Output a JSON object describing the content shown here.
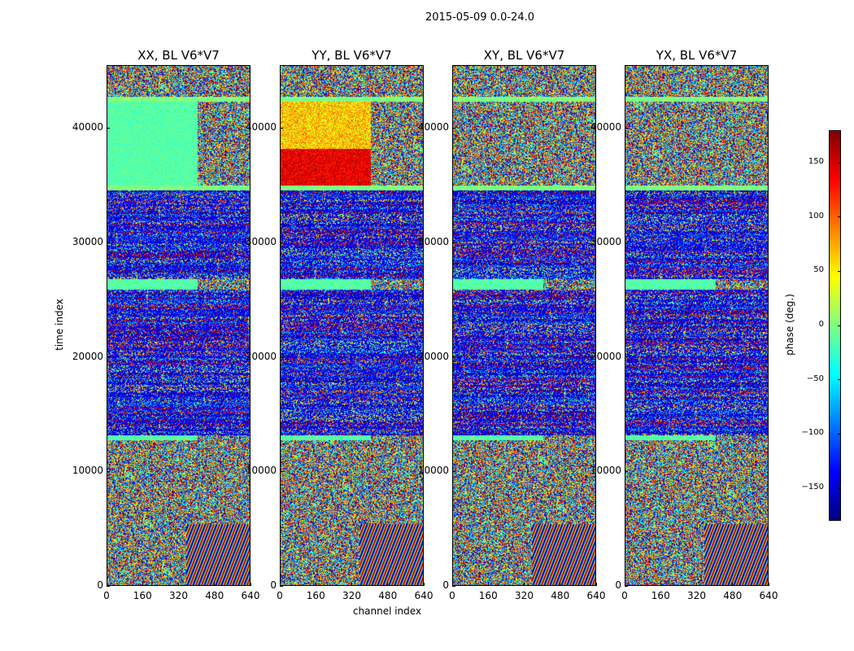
{
  "suptitle": "2015-05-09 0.0-24.0",
  "chart_data": {
    "type": "heatmap",
    "panels": [
      {
        "title": "XX, BL V6*V7"
      },
      {
        "title": "YY, BL V6*V7"
      },
      {
        "title": "XY, BL V6*V7"
      },
      {
        "title": "YX, BL V6*V7"
      }
    ],
    "xlabel": "channel index",
    "ylabel": "time index",
    "xlim": [
      0,
      640
    ],
    "ylim": [
      0,
      45500
    ],
    "xticks": [
      0,
      160,
      320,
      480,
      640
    ],
    "yticks": [
      0,
      10000,
      20000,
      30000,
      40000
    ],
    "colormap": "jet",
    "colorbar": {
      "label": "phase (deg.)",
      "range": [
        -180,
        180
      ],
      "ticks": [
        -150,
        -100,
        -50,
        0,
        50,
        100,
        150
      ]
    }
  }
}
